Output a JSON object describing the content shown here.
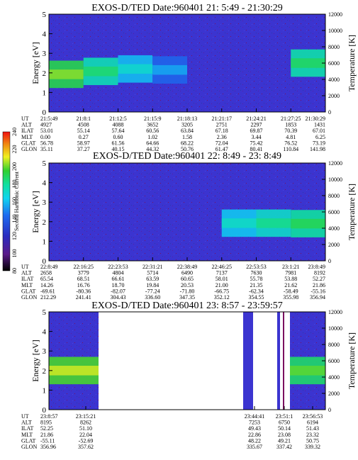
{
  "panels": [
    {
      "title": "EXOS-D/TED    Date:960401  21: 5:49 - 21:30:29",
      "ylabel_left": "Energy [eV]",
      "ylabel_right": "Temperature [K]",
      "left_ticks": [
        "5",
        "4",
        "3",
        "2",
        "1",
        "0"
      ],
      "right_ticks": [
        "12000",
        "10000",
        "8000",
        "6000",
        "4000",
        "2000",
        "0"
      ],
      "eph_labels": [
        "UT",
        "ALT",
        "ILAT",
        "MLT",
        "GLAT",
        "GLON"
      ],
      "eph_cols": [
        [
          "21:5:49",
          "4927",
          "53.01",
          "0.00",
          "56.78",
          "35.11"
        ],
        [
          "21:8:1",
          "4508",
          "55.14",
          "0.27",
          "58.97",
          "37.27"
        ],
        [
          "21:12:5",
          "4088",
          "57.64",
          "0.60",
          "61.56",
          "40.15"
        ],
        [
          "21:15:9",
          "3652",
          "60.56",
          "1.02",
          "64.66",
          "44.32"
        ],
        [
          "21:18:13",
          "3205",
          "63.84",
          "1.58",
          "68.22",
          "50.76"
        ],
        [
          "21:21:17",
          "2751",
          "67.18",
          "2.36",
          "72.04",
          "61.47"
        ],
        [
          "21:24:21",
          "2297",
          "69.87",
          "3.44",
          "75.42",
          "80.41"
        ],
        [
          "21:27:25",
          "1853",
          "70.39",
          "4.81",
          "76.52",
          "110.84"
        ],
        [
          "21:30:29",
          "1431",
          "67.01",
          "6.25",
          "73.19",
          "141.98"
        ]
      ]
    },
    {
      "title": "EXOS-D/TED    Date:960401  22: 8:49 - 23: 8:49",
      "ylabel_left": "Energy [eV]",
      "ylabel_right": "Temperature [K]",
      "left_ticks": [
        "5",
        "4",
        "3",
        "2",
        "1",
        "0"
      ],
      "right_ticks": [
        "12000",
        "10000",
        "8000",
        "6000",
        "4000",
        "2000",
        "0"
      ],
      "eph_labels": [
        "UT",
        "ALT",
        "ILAT",
        "MLT",
        "GLAT",
        "GLON"
      ],
      "eph_cols": [
        [
          "22:8:49",
          "2658",
          "65.54",
          "14.26",
          "-69.61",
          "212.29"
        ],
        [
          "22:16:25",
          "3779",
          "68.51",
          "16.76",
          "-80.36",
          "241.41"
        ],
        [
          "22:23:53",
          "4804",
          "66.61",
          "18.70",
          "-82.07",
          "304.43"
        ],
        [
          "22:31:21",
          "5714",
          "63.59",
          "19.84",
          "-77.24",
          "336.60"
        ],
        [
          "22:38:49",
          "6490",
          "60.65",
          "20.53",
          "-71.80",
          "347.35"
        ],
        [
          "22:46:25",
          "7137",
          "58.01",
          "21.00",
          "-66.75",
          "352.12"
        ],
        [
          "22:53:53",
          "7630",
          "55.78",
          "21.35",
          "-62.34",
          "354.55"
        ],
        [
          "23:1:21",
          "7981",
          "53.88",
          "21.62",
          "-58.49",
          "355.98"
        ],
        [
          "23:8:49",
          "8192",
          "52.27",
          "21.86",
          "-55.16",
          "356.94"
        ]
      ]
    },
    {
      "title": "EXOS-D/TED    Date:960401  23: 8:57 - 23:59:57",
      "ylabel_left": "Energy [eV]",
      "ylabel_right": "Temperature [K]",
      "left_ticks": [
        "5",
        "4",
        "3",
        "2",
        "1",
        "0"
      ],
      "right_ticks": [
        "12000",
        "10000",
        "8000",
        "6000",
        "4000",
        "2000",
        "0"
      ],
      "eph_labels": [
        "UT",
        "ALT",
        "ILAT",
        "MLT",
        "GLAT",
        "GLON"
      ],
      "eph_cols": [
        [
          "23:8:57",
          "8195",
          "52.25",
          "21.86",
          "-55.11",
          "356.96"
        ],
        [
          "23:15:21",
          "8262",
          "51.10",
          "22.04",
          "-52.69",
          "357.62"
        ],
        [
          "23:44:41",
          "7253",
          "49.43",
          "22.86",
          "48.22",
          "335.67"
        ],
        [
          "23:51:1",
          "6750",
          "50.14",
          "23.08",
          "49.21",
          "337.42"
        ],
        [
          "23:56:53",
          "6194",
          "51.43",
          "23.32",
          "50.75",
          "339.32"
        ]
      ]
    }
  ],
  "colorbar": {
    "label": "Second Harmonic Current",
    "ticks": [
      "240",
      "220",
      "200",
      "180",
      "160",
      "140",
      "120",
      "100",
      "80"
    ]
  },
  "chart_data": [
    {
      "type": "heatmap",
      "title": "EXOS-D/TED    Date:960401  21: 5:49 - 21:30:29",
      "xlabel": "UT",
      "ylabel": "Energy [eV]",
      "y2label": "Temperature [K]",
      "ylim": [
        0,
        5
      ],
      "y2lim": [
        0,
        12000
      ],
      "x_ticks": [
        "21:5:49",
        "21:8:1",
        "21:12:5",
        "21:15:9",
        "21:18:13",
        "21:21:17",
        "21:24:21",
        "21:27:25",
        "21:30:29"
      ],
      "band_center_eV": [
        1.9,
        1.95,
        2.2,
        2.2,
        2.1,
        null,
        null,
        2.5,
        2.5
      ],
      "band_intensity": [
        200,
        190,
        160,
        150,
        125,
        110,
        110,
        170,
        185
      ]
    },
    {
      "type": "heatmap",
      "title": "EXOS-D/TED    Date:960401  22: 8:49 - 23: 8:49",
      "xlabel": "UT",
      "ylabel": "Energy [eV]",
      "y2label": "Temperature [K]",
      "ylim": [
        0,
        5
      ],
      "y2lim": [
        0,
        12000
      ],
      "x_ticks": [
        "22:8:49",
        "22:16:25",
        "22:23:53",
        "22:31:21",
        "22:38:49",
        "22:46:25",
        "22:53:53",
        "23:1:21",
        "23:8:49"
      ],
      "band_center_eV": [
        null,
        null,
        null,
        null,
        null,
        1.9,
        1.95,
        1.9,
        1.9
      ],
      "band_intensity": [
        110,
        110,
        110,
        110,
        115,
        150,
        165,
        175,
        185
      ]
    },
    {
      "type": "heatmap",
      "title": "EXOS-D/TED    Date:960401  23: 8:57 - 23:59:57",
      "xlabel": "UT",
      "ylabel": "Energy [eV]",
      "y2label": "Temperature [K]",
      "ylim": [
        0,
        5
      ],
      "y2lim": [
        0,
        12000
      ],
      "x_ticks": [
        "23:8:57",
        "23:15:21",
        "23:44:41",
        "23:51:1",
        "23:56:53"
      ],
      "band_center_eV": [
        2.0,
        2.0,
        2.0,
        1.9,
        2.1
      ],
      "band_intensity": [
        205,
        200,
        180,
        170,
        210
      ],
      "data_gap": [
        "23:17:00",
        "23:43:00"
      ]
    }
  ]
}
